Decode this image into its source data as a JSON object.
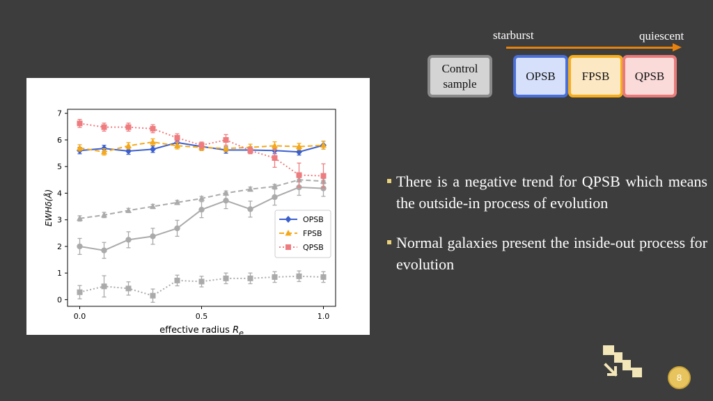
{
  "slide": {
    "background": "#3d3d3d",
    "page_number": "8"
  },
  "sequence": {
    "left_label": "starburst",
    "right_label": "quiescent",
    "arrow_color": "#e8820c",
    "boxes": [
      {
        "label": "Control\nsample",
        "fill": "#d4d4d4",
        "border": "#8a8a8a"
      },
      {
        "label": "OPSB",
        "fill": "#d6e0fb",
        "border": "#4a6fd6"
      },
      {
        "label": "FPSB",
        "fill": "#fde8c4",
        "border": "#f5ad1d"
      },
      {
        "label": "QPSB",
        "fill": "#fbdada",
        "border": "#e87a7a"
      }
    ]
  },
  "bullets": [
    "There is a negative trend for QPSB which means the outside-in process of evolution",
    "Normal galaxies present the inside-out process for evolution"
  ],
  "decor": {
    "icon": "stairs-down-icon",
    "icon_color": "#f3e6b8"
  },
  "chart_data": {
    "type": "line",
    "xlabel": "effective radius R_e",
    "ylabel": "EWHδ(Å)",
    "xlim": [
      -0.05,
      1.05
    ],
    "ylim": [
      -0.25,
      7.15
    ],
    "x_ticks": [
      0.0,
      0.5,
      1.0
    ],
    "x_tick_labels": [
      "0.0",
      "0.5",
      "1.0"
    ],
    "y_ticks": [
      0,
      1,
      2,
      3,
      4,
      5,
      6,
      7
    ],
    "y_tick_labels": [
      "0",
      "1",
      "2",
      "3",
      "4",
      "5",
      "6",
      "7"
    ],
    "legend_position": "lower-right",
    "grid": false,
    "x": [
      0.0,
      0.1,
      0.2,
      0.3,
      0.4,
      0.5,
      0.6,
      0.7,
      0.8,
      0.9,
      1.0
    ],
    "series": [
      {
        "name": "OPSB",
        "color": "#3a5fcd",
        "style": "solid",
        "marker": "diamond",
        "legend": true,
        "values": [
          5.6,
          5.68,
          5.58,
          5.65,
          5.9,
          5.75,
          5.62,
          5.62,
          5.6,
          5.55,
          5.8
        ],
        "errors": [
          0.12,
          0.12,
          0.12,
          0.12,
          0.12,
          0.12,
          0.12,
          0.12,
          0.12,
          0.12,
          0.15
        ]
      },
      {
        "name": "FPSB",
        "color": "#f5a818",
        "style": "dashed",
        "marker": "triangle",
        "legend": true,
        "values": [
          5.7,
          5.55,
          5.78,
          5.92,
          5.78,
          5.72,
          5.68,
          5.72,
          5.78,
          5.75,
          5.8
        ],
        "errors": [
          0.12,
          0.12,
          0.12,
          0.12,
          0.12,
          0.12,
          0.12,
          0.12,
          0.15,
          0.12,
          0.15
        ]
      },
      {
        "name": "QPSB",
        "color": "#ee7b7e",
        "style": "dotted",
        "marker": "square",
        "legend": true,
        "values": [
          6.62,
          6.48,
          6.48,
          6.42,
          6.08,
          5.8,
          6.0,
          5.6,
          5.32,
          4.68,
          4.65
        ],
        "errors": [
          0.15,
          0.15,
          0.15,
          0.15,
          0.15,
          0.12,
          0.2,
          0.12,
          0.35,
          0.45,
          0.45
        ]
      },
      {
        "name": "",
        "color": "#aaaaaa",
        "style": "dashed",
        "marker": "triangle",
        "legend": false,
        "values": [
          3.05,
          3.18,
          3.35,
          3.5,
          3.65,
          3.8,
          4.0,
          4.15,
          4.25,
          4.5,
          4.45
        ],
        "errors": [
          0.1,
          0.1,
          0.08,
          0.08,
          0.08,
          0.08,
          0.08,
          0.08,
          0.08,
          0.08,
          0.1
        ]
      },
      {
        "name": "",
        "color": "#aaaaaa",
        "style": "solid",
        "marker": "circle",
        "legend": false,
        "values": [
          2.0,
          1.85,
          2.25,
          2.38,
          2.68,
          3.38,
          3.72,
          3.4,
          3.85,
          4.22,
          4.18
        ],
        "errors": [
          0.3,
          0.3,
          0.3,
          0.3,
          0.3,
          0.3,
          0.3,
          0.3,
          0.3,
          0.3,
          0.3
        ]
      },
      {
        "name": "",
        "color": "#aaaaaa",
        "style": "dotted",
        "marker": "square",
        "legend": false,
        "values": [
          0.28,
          0.5,
          0.42,
          0.15,
          0.72,
          0.68,
          0.8,
          0.8,
          0.85,
          0.88,
          0.85
        ],
        "errors": [
          0.25,
          0.4,
          0.25,
          0.25,
          0.2,
          0.2,
          0.2,
          0.2,
          0.2,
          0.2,
          0.2
        ]
      }
    ]
  }
}
